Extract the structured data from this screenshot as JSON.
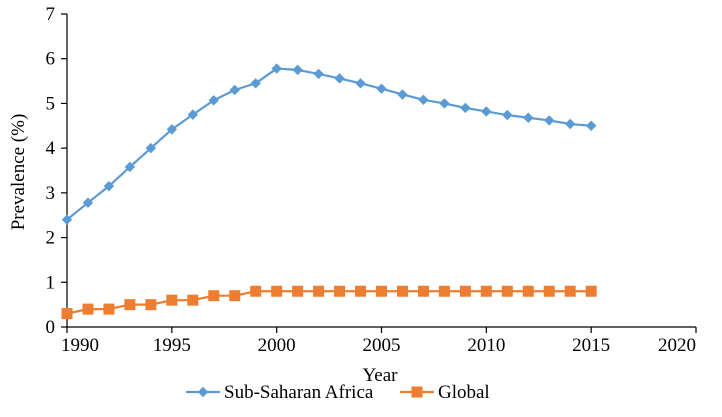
{
  "chart_data": {
    "type": "line",
    "title": "",
    "xlabel": "Year",
    "ylabel": "Prevalence (%)",
    "xlim": [
      1990,
      2020
    ],
    "ylim": [
      0,
      7
    ],
    "xticks": [
      1990,
      1995,
      2000,
      2005,
      2010,
      2015,
      2020
    ],
    "yticks": [
      0,
      1,
      2,
      3,
      4,
      5,
      6,
      7
    ],
    "grid": false,
    "legend_position": "bottom",
    "series": [
      {
        "name": "Sub-Saharan Africa",
        "color": "#5b9bd5",
        "marker": "diamond",
        "x": [
          1990,
          1991,
          1992,
          1993,
          1994,
          1995,
          1996,
          1997,
          1998,
          1999,
          2000,
          2001,
          2002,
          2003,
          2004,
          2005,
          2006,
          2007,
          2008,
          2009,
          2010,
          2011,
          2012,
          2013,
          2014,
          2015
        ],
        "values": [
          2.4,
          2.78,
          3.15,
          3.58,
          4.0,
          4.42,
          4.75,
          5.07,
          5.3,
          5.45,
          5.78,
          5.75,
          5.66,
          5.56,
          5.45,
          5.33,
          5.2,
          5.08,
          5.0,
          4.9,
          4.82,
          4.74,
          4.68,
          4.62,
          4.54,
          4.5
        ]
      },
      {
        "name": "Global",
        "color": "#ed7d31",
        "marker": "square",
        "x": [
          1990,
          1991,
          1992,
          1993,
          1994,
          1995,
          1996,
          1997,
          1998,
          1999,
          2000,
          2001,
          2002,
          2003,
          2004,
          2005,
          2006,
          2007,
          2008,
          2009,
          2010,
          2011,
          2012,
          2013,
          2014,
          2015
        ],
        "values": [
          0.3,
          0.4,
          0.4,
          0.5,
          0.5,
          0.6,
          0.6,
          0.7,
          0.7,
          0.8,
          0.8,
          0.8,
          0.8,
          0.8,
          0.8,
          0.8,
          0.8,
          0.8,
          0.8,
          0.8,
          0.8,
          0.8,
          0.8,
          0.8,
          0.8,
          0.8
        ]
      }
    ]
  }
}
